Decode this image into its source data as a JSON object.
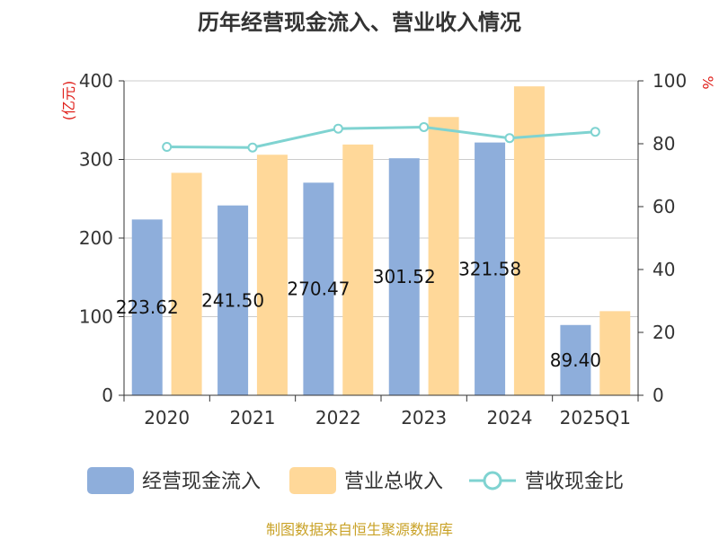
{
  "chart_data": {
    "type": "bar",
    "title": "历年经营现金流入、营业收入情况",
    "categories": [
      "2020",
      "2021",
      "2022",
      "2023",
      "2024",
      "2025Q1"
    ],
    "y_left": {
      "unit": "(亿元)",
      "lim": [
        0,
        400
      ],
      "ticks": [
        0,
        100,
        200,
        300,
        400
      ]
    },
    "y_right": {
      "unit": "%",
      "lim": [
        0,
        100
      ],
      "ticks": [
        0,
        20,
        40,
        60,
        80,
        100
      ]
    },
    "series": [
      {
        "name": "经营现金流入",
        "kind": "bar",
        "axis": "left",
        "color": "#8eaedb",
        "values": [
          223.62,
          241.5,
          270.47,
          301.52,
          321.58,
          89.4
        ],
        "labels": [
          "223.62",
          "241.50",
          "270.47",
          "301.52",
          "321.58",
          "89.40"
        ]
      },
      {
        "name": "营业总收入",
        "kind": "bar",
        "axis": "left",
        "color": "#ffd899",
        "values": [
          283,
          306,
          319,
          354,
          393,
          107
        ]
      },
      {
        "name": "营收现金比",
        "kind": "line",
        "axis": "right",
        "color": "#7fd3d1",
        "values": [
          79,
          78.8,
          84.8,
          85.3,
          81.8,
          83.8
        ]
      }
    ],
    "grid": true,
    "legend": "bottom",
    "source": "制图数据来自恒生聚源数据库"
  }
}
